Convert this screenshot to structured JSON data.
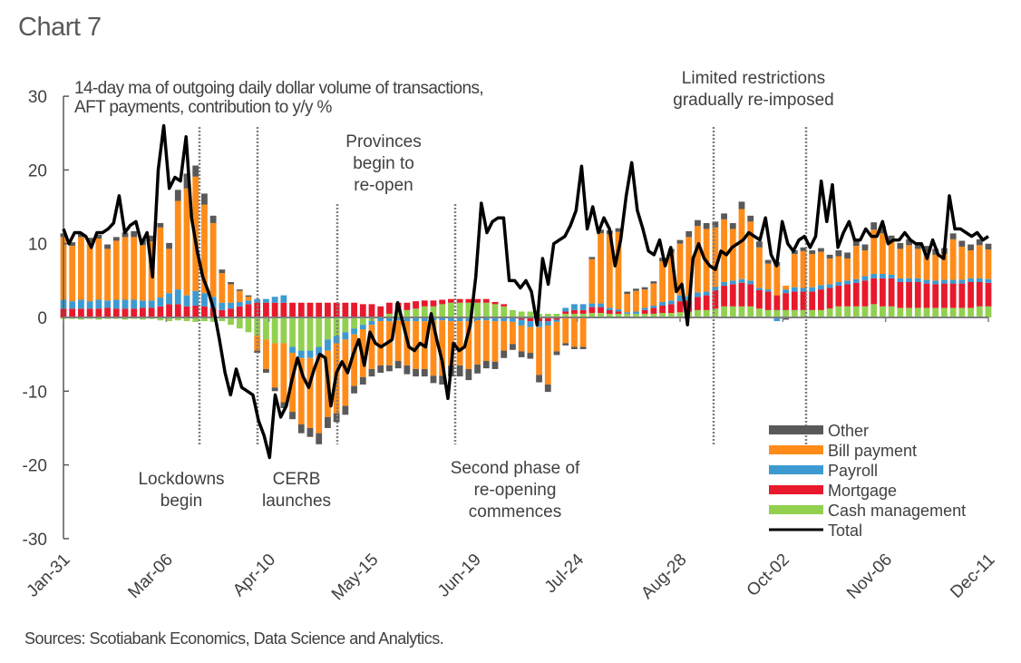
{
  "page": {
    "title": "Chart 7",
    "subtitle_line1": "14-day ma of outgoing daily dollar volume of transactions,",
    "subtitle_line2": "AFT payments, contribution to y/y %",
    "source": "Sources: Scotiabank Economics, Data Science and Analytics."
  },
  "chart_data": {
    "type": "bar",
    "stacked": true,
    "title": "Chart 7",
    "subtitle": "14-day ma of outgoing daily dollar volume of transactions, AFT payments, contribution to y/y %",
    "xlabel": "",
    "ylabel": "",
    "ylim": [
      -30,
      30
    ],
    "yticks": [
      -30,
      -20,
      -10,
      0,
      10,
      20,
      30
    ],
    "x_start": "Jan-31",
    "x_step_days": 3,
    "xtick_labels": [
      "Jan-31",
      "Mar-06",
      "Apr-10",
      "May-15",
      "Jun-19",
      "Jul-24",
      "Aug-28",
      "Oct-02",
      "Nov-06",
      "Dec-11"
    ],
    "xtick_days": [
      0,
      35,
      70,
      105,
      140,
      175,
      210,
      245,
      280,
      315
    ],
    "grid": false,
    "legend_position": "bottom-right",
    "series_colors": {
      "Other": "#595959",
      "Bill payment": "#FF8C1A",
      "Payroll": "#3D9AD1",
      "Mortgage": "#E8192C",
      "Cash management": "#92D050",
      "Total": "#000000"
    },
    "legend": [
      "Other",
      "Bill payment",
      "Payroll",
      "Mortgage",
      "Cash management",
      "Total"
    ],
    "series": [
      {
        "name": "Cash management",
        "values": [
          -0.2,
          -0.2,
          -0.3,
          -0.2,
          -0.3,
          -0.2,
          -0.2,
          -0.3,
          -0.2,
          -0.3,
          -0.2,
          -0.4,
          -0.5,
          -0.4,
          -0.5,
          -0.6,
          -0.5,
          -0.6,
          -0.5,
          -1.0,
          -1.5,
          -2.0,
          -2.5,
          -3.0,
          -3.5,
          -3.5,
          -4.0,
          -4.5,
          -4.5,
          -4.0,
          -3.0,
          -2.5,
          -2.0,
          -1.5,
          -1.0,
          -0.5,
          0.0,
          0.5,
          0.8,
          1.0,
          1.2,
          1.5,
          1.5,
          1.8,
          2.0,
          2.0,
          2.0,
          2.0,
          2.0,
          1.8,
          1.5,
          1.0,
          0.8,
          0.8,
          0.5,
          0.5,
          0.5,
          0.5,
          0.5,
          0.5,
          0.6,
          0.6,
          0.5,
          0.5,
          0.5,
          0.5,
          0.5,
          0.5,
          0.6,
          0.6,
          0.7,
          0.8,
          1.0,
          1.0,
          1.2,
          1.5,
          1.5,
          1.5,
          1.5,
          1.2,
          1.0,
          1.0,
          1.0,
          1.0,
          1.0,
          1.0,
          1.0,
          1.2,
          1.5,
          1.5,
          1.5,
          1.5,
          1.8,
          1.5,
          1.5,
          1.3,
          1.3,
          1.3,
          1.3,
          1.3,
          1.3,
          1.3,
          1.3,
          1.3,
          1.5,
          1.5
        ]
      },
      {
        "name": "Mortgage",
        "values": [
          1.2,
          1.2,
          1.2,
          1.2,
          1.2,
          1.3,
          1.2,
          1.2,
          1.2,
          1.3,
          1.3,
          1.5,
          1.8,
          1.8,
          1.5,
          1.6,
          1.5,
          1.3,
          1.0,
          1.2,
          1.5,
          1.8,
          2.0,
          2.0,
          2.0,
          2.0,
          2.0,
          2.0,
          2.0,
          2.0,
          2.0,
          2.0,
          2.0,
          2.0,
          1.8,
          1.8,
          1.5,
          1.5,
          1.2,
          1.0,
          1.0,
          0.8,
          0.8,
          0.6,
          0.5,
          0.5,
          0.5,
          0.5,
          0.5,
          0.3,
          0.3,
          0.0,
          -0.3,
          -0.5,
          -0.5,
          -0.5,
          -0.3,
          0.3,
          0.5,
          0.5,
          0.8,
          0.8,
          0.5,
          0.3,
          0.0,
          0.0,
          0.5,
          0.8,
          1.0,
          1.2,
          1.5,
          1.5,
          1.8,
          2.0,
          2.5,
          2.8,
          3.0,
          3.2,
          3.0,
          2.5,
          2.5,
          2.0,
          2.3,
          2.5,
          2.5,
          2.5,
          2.8,
          2.8,
          2.8,
          3.0,
          3.2,
          3.5,
          3.5,
          3.8,
          3.8,
          3.5,
          3.5,
          3.5,
          3.3,
          3.2,
          3.3,
          3.3,
          3.3,
          3.5,
          3.3,
          3.2
        ]
      },
      {
        "name": "Payroll",
        "values": [
          1.2,
          1.0,
          1.2,
          1.0,
          1.2,
          1.0,
          1.2,
          1.2,
          1.2,
          1.0,
          1.0,
          1.2,
          1.5,
          2.0,
          1.5,
          2.0,
          1.8,
          1.5,
          1.0,
          0.8,
          0.6,
          0.5,
          0.5,
          0.5,
          0.8,
          1.0,
          -0.8,
          -1.0,
          -1.0,
          -1.2,
          -1.5,
          -1.0,
          -1.0,
          -0.8,
          -0.6,
          -0.5,
          -0.5,
          -0.5,
          -0.4,
          -0.5,
          -0.5,
          -0.5,
          -0.4,
          -0.4,
          -0.5,
          -0.5,
          -0.5,
          -0.4,
          -0.4,
          -0.5,
          -0.5,
          -0.6,
          -0.8,
          -0.8,
          -0.8,
          -0.6,
          -0.3,
          0.5,
          0.8,
          0.8,
          0.5,
          0.5,
          0.3,
          0.3,
          0.2,
          0.3,
          0.3,
          0.3,
          0.5,
          0.5,
          0.8,
          0.6,
          0.6,
          0.5,
          0.5,
          0.5,
          0.5,
          0.5,
          0.5,
          0.3,
          0.3,
          -0.5,
          0.5,
          0.6,
          0.5,
          0.6,
          0.6,
          0.5,
          0.5,
          0.5,
          0.5,
          0.6,
          0.6,
          0.6,
          0.5,
          0.5,
          0.5,
          0.5,
          0.5,
          0.5,
          0.5,
          0.5,
          0.5,
          0.5,
          0.5,
          0.5
        ]
      },
      {
        "name": "Bill payment",
        "values": [
          8.5,
          7.5,
          8.5,
          8.0,
          8.3,
          7.0,
          8.0,
          8.5,
          8.5,
          7.5,
          8.0,
          9.5,
          6.0,
          12.0,
          14.5,
          15.5,
          12.0,
          10.0,
          4.0,
          2.5,
          1.5,
          0.5,
          -2.0,
          -4.0,
          -6.0,
          -8.0,
          -8.0,
          -9.0,
          -9.5,
          -10.5,
          -9.0,
          -9.5,
          -9.0,
          -7.0,
          -6.5,
          -6.0,
          -6.0,
          -6.0,
          -5.5,
          -6.0,
          -6.5,
          -6.5,
          -7.5,
          -7.5,
          -6.0,
          -6.0,
          -6.5,
          -6.0,
          -5.5,
          -5.5,
          -4.0,
          -3.0,
          -3.5,
          -3.5,
          -6.5,
          -8.0,
          -4.0,
          -3.5,
          -4.0,
          -4.0,
          6.0,
          9.5,
          10.0,
          10.5,
          2.5,
          2.8,
          2.5,
          3.0,
          5.5,
          6.5,
          7.0,
          8.0,
          9.0,
          8.5,
          8.0,
          8.5,
          7.0,
          9.5,
          8.0,
          5.5,
          3.5,
          4.0,
          0.5,
          4.5,
          5.0,
          4.5,
          4.5,
          3.5,
          3.5,
          3.0,
          4.5,
          3.5,
          6.0,
          5.5,
          4.5,
          4.0,
          4.5,
          4.0,
          3.8,
          3.5,
          3.5,
          5.5,
          4.5,
          3.8,
          4.5,
          4.0
        ]
      },
      {
        "name": "Other",
        "values": [
          0.5,
          0.5,
          0.5,
          0.6,
          0.5,
          0.6,
          0.5,
          0.6,
          0.8,
          0.8,
          0.8,
          0.6,
          0.8,
          1.5,
          2.0,
          1.5,
          1.5,
          1.0,
          0.5,
          0.3,
          0.2,
          0.2,
          -0.3,
          -0.5,
          -0.5,
          -0.8,
          -1.0,
          -1.2,
          -1.2,
          -1.5,
          -1.5,
          -1.2,
          -1.2,
          -1.0,
          -1.0,
          -1.0,
          -1.0,
          -0.8,
          -1.0,
          -1.2,
          -1.0,
          -1.0,
          -1.0,
          -1.2,
          -1.5,
          -1.5,
          -1.5,
          -1.2,
          -1.0,
          -1.0,
          -1.0,
          -0.8,
          -0.8,
          -0.8,
          -1.0,
          -1.0,
          -0.5,
          -0.3,
          -0.3,
          -0.3,
          0.3,
          0.5,
          0.5,
          0.5,
          0.3,
          0.3,
          0.3,
          0.3,
          0.5,
          0.5,
          0.5,
          0.8,
          0.8,
          0.8,
          0.8,
          0.8,
          0.8,
          1.0,
          0.8,
          0.8,
          0.5,
          0.5,
          -0.3,
          0.5,
          0.5,
          0.5,
          0.5,
          0.5,
          0.8,
          0.8,
          0.8,
          0.8,
          1.0,
          1.0,
          0.8,
          0.8,
          0.8,
          0.8,
          0.8,
          0.8,
          0.8,
          0.8,
          0.8,
          0.8,
          0.8,
          0.8
        ]
      },
      {
        "name": "Total",
        "values": [
          12.0,
          10.0,
          11.5,
          11.5,
          11.0,
          9.5,
          11.5,
          11.5,
          12.0,
          12.8,
          16.5,
          11.5,
          12.5,
          13.0,
          10.0,
          11.5,
          5.5,
          20.0,
          26.0,
          17.5,
          19.0,
          18.5,
          24.5,
          13.5,
          9.0,
          5.5,
          3.5,
          1.0,
          -3.0,
          -7.5,
          -10.5,
          -7.0,
          -9.5,
          -10.0,
          -10.5,
          -14.0,
          -16.0,
          -19.0,
          -10.5,
          -13.5,
          -12.0,
          -8.5,
          -5.5,
          -8.0,
          -9.5,
          -7.0,
          -5.0,
          -5.5,
          -12.0,
          -7.5,
          -6.0,
          -7.5,
          -5.0,
          -3.0,
          -6.5,
          -2.0,
          -3.5,
          -4.0,
          -3.5,
          -3.0,
          2.0,
          -1.0,
          -4.0,
          -4.5,
          -3.5,
          -4.0,
          0.5,
          -3.0,
          -6.0,
          -11.0,
          -3.5,
          -4.5,
          -4.0,
          -1.0,
          5.5,
          15.5,
          11.5,
          13.0,
          13.5,
          13.5,
          5.0,
          5.0,
          4.0,
          5.0,
          3.5,
          -1.0,
          8.0,
          4.5,
          10.0,
          10.5,
          11.0,
          12.5,
          14.5,
          20.5,
          12.0,
          15.0,
          11.5,
          13.5,
          12.0,
          7.0,
          10.5,
          16.5,
          21.0,
          14.5,
          12.0,
          9.0,
          8.5,
          10.5,
          7.0,
          9.5,
          3.5,
          4.5,
          -1.0,
          8.0,
          10.0,
          8.0,
          7.0,
          6.5,
          9.0,
          8.5,
          9.5,
          10.0,
          10.5,
          11.5,
          11.0,
          10.5,
          13.5,
          8.5,
          7.0,
          13.0,
          10.0,
          9.0,
          10.5,
          11.0,
          9.5,
          11.0,
          18.5,
          13.0,
          18.0,
          9.5,
          11.5,
          13.0,
          10.5,
          10.5,
          12.0,
          11.0,
          11.0,
          13.0,
          10.0,
          10.5,
          10.5,
          11.5,
          10.5,
          10.0,
          10.0,
          8.0,
          10.5,
          8.5,
          8.0,
          16.5,
          12.0,
          12.0,
          11.5,
          11.0,
          11.5,
          10.5,
          11.0
        ]
      }
    ],
    "total_x_step_days": 1.9,
    "annotations": [
      {
        "text_lines": [
          "Lockdowns",
          "begin"
        ],
        "day": 46
      },
      {
        "text_lines": [
          "CERB",
          "launches"
        ],
        "day": 66
      },
      {
        "text_lines": [
          "Provinces",
          "begin to",
          "re-open"
        ],
        "day": 93
      },
      {
        "text_lines": [
          "Second phase of",
          "re-opening",
          "commences"
        ],
        "day": 133
      },
      {
        "text_lines": [
          "Limited restrictions",
          "gradually re-imposed"
        ],
        "day": 222,
        "day2": 253
      }
    ]
  }
}
